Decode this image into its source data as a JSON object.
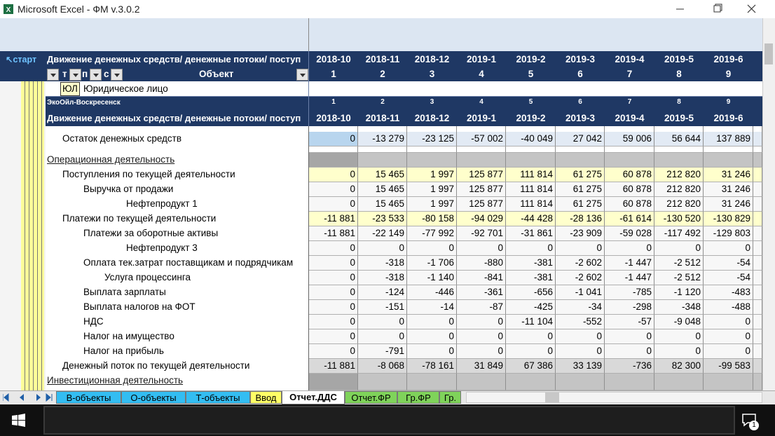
{
  "window": {
    "title": "Microsoft Excel - ФМ v.3.0.2"
  },
  "header": {
    "start": "↖старт",
    "caption": "Движение денежных средств/ денежные потоки/ поступ",
    "filters": [
      "т",
      "п",
      "с"
    ],
    "object": "Объект",
    "periods": [
      "2018-10",
      "2018-11",
      "2018-12",
      "2019-1",
      "2019-2",
      "2019-3",
      "2019-4",
      "2019-5",
      "2019-6"
    ],
    "indices": [
      1,
      2,
      3,
      4,
      5,
      6,
      7,
      8,
      9
    ]
  },
  "entity": {
    "code": "ЮЛ",
    "name": "Юридическое лицо"
  },
  "company": {
    "name": "ЭкоОйл-Воскресенск",
    "indices": [
      1,
      2,
      3,
      4,
      5,
      6,
      7,
      8,
      9
    ],
    "caption": "Движение денежных средств/ денежные потоки/ поступ",
    "periods": [
      "2018-10",
      "2018-11",
      "2018-12",
      "2019-1",
      "2019-2",
      "2019-3",
      "2019-4",
      "2019-5",
      "2019-6"
    ]
  },
  "rows": [
    {
      "label": "Остаток денежных средств",
      "values": [
        "0",
        "-13 279",
        "-23 125",
        "-57 002",
        "-40 049",
        "27 042",
        "59 006",
        "56 644",
        "137 889"
      ]
    },
    {
      "label": "Операционная деятельность"
    },
    {
      "label": "Поступления по текущей деятельности",
      "values": [
        "0",
        "15 465",
        "1 997",
        "125 877",
        "111 814",
        "61 275",
        "60 878",
        "212 820",
        "31 246"
      ]
    },
    {
      "label": "Выручка от продажи",
      "values": [
        "0",
        "15 465",
        "1 997",
        "125 877",
        "111 814",
        "61 275",
        "60 878",
        "212 820",
        "31 246"
      ]
    },
    {
      "label": "Нефтепродукт 1",
      "values": [
        "0",
        "15 465",
        "1 997",
        "125 877",
        "111 814",
        "61 275",
        "60 878",
        "212 820",
        "31 246"
      ]
    },
    {
      "label": "Платежи по текущей деятельности",
      "values": [
        "-11 881",
        "-23 533",
        "-80 158",
        "-94 029",
        "-44 428",
        "-28 136",
        "-61 614",
        "-130 520",
        "-130 829"
      ]
    },
    {
      "label": "Платежи за оборотные активы",
      "values": [
        "-11 881",
        "-22 149",
        "-77 992",
        "-92 701",
        "-31 861",
        "-23 909",
        "-59 028",
        "-117 492",
        "-129 803"
      ]
    },
    {
      "label": "Нефтепродукт 3",
      "values": [
        "0",
        "0",
        "0",
        "0",
        "0",
        "0",
        "0",
        "0",
        "0"
      ]
    },
    {
      "label": "Оплата тек.затрат поставщикам и подрядчикам",
      "values": [
        "0",
        "-318",
        "-1 706",
        "-880",
        "-381",
        "-2 602",
        "-1 447",
        "-2 512",
        "-54"
      ]
    },
    {
      "label": "Услуга процессинга",
      "values": [
        "0",
        "-318",
        "-1 140",
        "-841",
        "-381",
        "-2 602",
        "-1 447",
        "-2 512",
        "-54"
      ]
    },
    {
      "label": "Выплата зарплаты",
      "values": [
        "0",
        "-124",
        "-446",
        "-361",
        "-656",
        "-1 041",
        "-785",
        "-1 120",
        "-483"
      ]
    },
    {
      "label": "Выплата налогов на ФОТ",
      "values": [
        "0",
        "-151",
        "-14",
        "-87",
        "-425",
        "-34",
        "-298",
        "-348",
        "-488"
      ]
    },
    {
      "label": "НДС",
      "values": [
        "0",
        "0",
        "0",
        "0",
        "-11 104",
        "-552",
        "-57",
        "-9 048",
        "0"
      ]
    },
    {
      "label": "Налог на имущество",
      "values": [
        "0",
        "0",
        "0",
        "0",
        "0",
        "0",
        "0",
        "0",
        "0"
      ]
    },
    {
      "label": "Налог на прибыль",
      "values": [
        "0",
        "-791",
        "0",
        "0",
        "0",
        "0",
        "0",
        "0",
        "0"
      ]
    },
    {
      "label": "Денежный поток по текущей деятельности",
      "values": [
        "-11 881",
        "-8 068",
        "-78 161",
        "31 849",
        "67 386",
        "33 139",
        "-736",
        "82 300",
        "-99 583"
      ]
    },
    {
      "label": "Инвестиционная деятельность"
    }
  ],
  "sheet_tabs": [
    "В-объекты",
    "О-объекты",
    "Т-объекты",
    "Ввод",
    "Отчет.ДДС",
    "Отчет.ФР",
    "Гр.ФР",
    "Гр."
  ],
  "notification_count": 1
}
